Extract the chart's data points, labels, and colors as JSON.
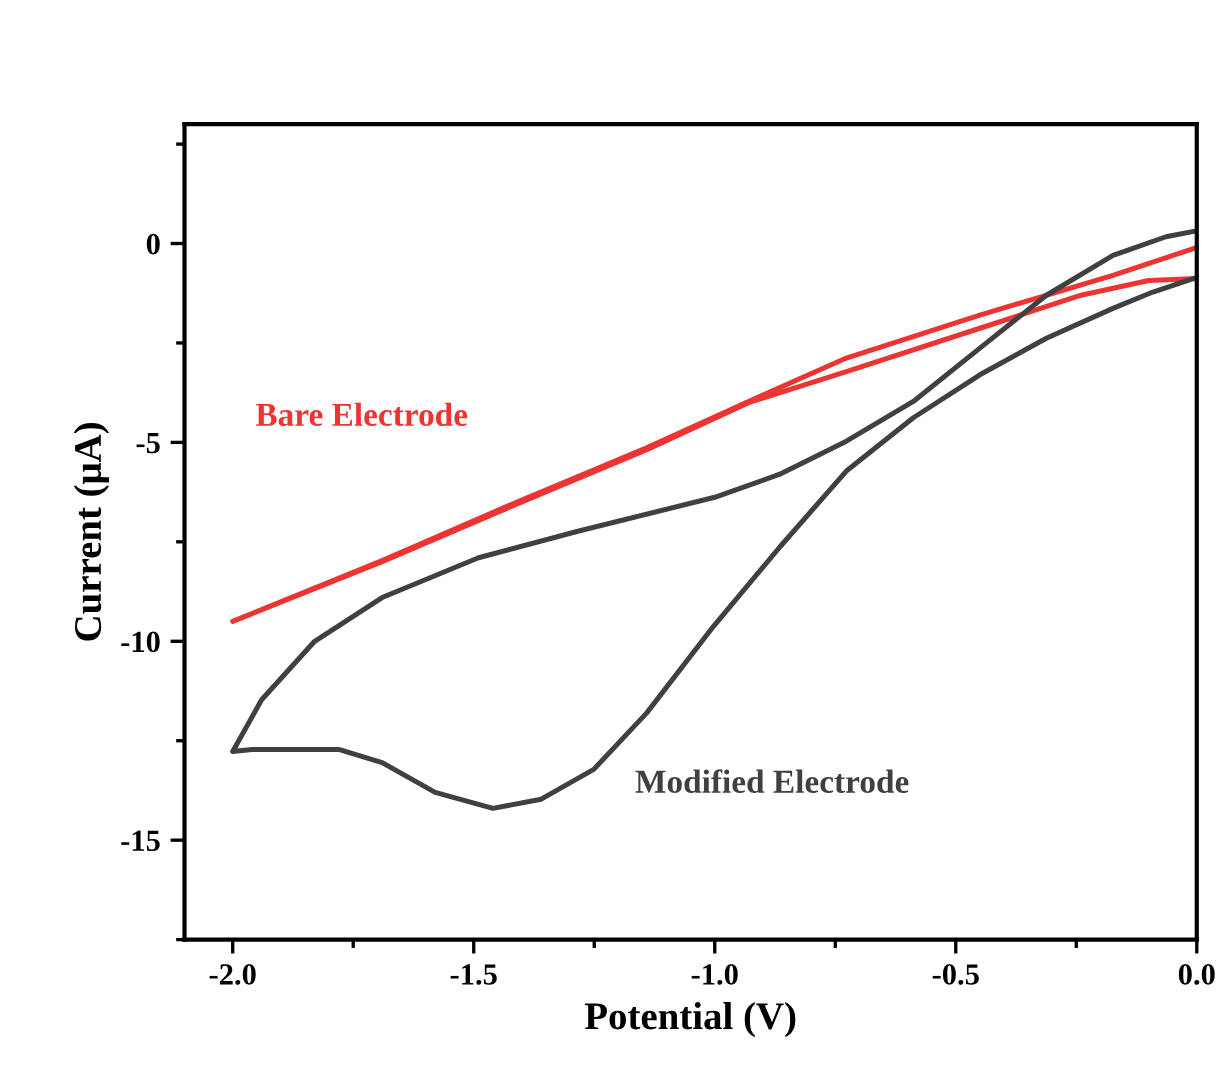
{
  "chart_data": {
    "type": "line",
    "xlabel": "Potential (V)",
    "ylabel": "Current (μA)",
    "xlim": [
      -2.1,
      0.0
    ],
    "ylim": [
      -17.5,
      3
    ],
    "xticks": [
      {
        "value": -2,
        "label": "-2.0"
      },
      {
        "value": -1.75,
        "label": null
      },
      -1.5,
      {
        "value": -1.25,
        "label": null
      },
      {
        "value": -1,
        "label": "-1.0"
      },
      {
        "value": -0.75,
        "label": null
      },
      -0.5,
      {
        "value": -0.25,
        "label": null
      },
      {
        "value": 0,
        "label": "0.0"
      }
    ],
    "yticks": [
      {
        "value": 2.5,
        "label": null
      },
      0,
      {
        "value": -2.5,
        "label": null
      },
      -5,
      {
        "value": -7.5,
        "label": null
      },
      -10,
      {
        "value": -12.5,
        "label": null
      },
      -15,
      {
        "value": -17.5,
        "label": null
      }
    ],
    "grid": false,
    "legend": false,
    "series": [
      {
        "name": "Bare Electrode",
        "color": "#ee3333",
        "x": [
          0.0,
          -0.174,
          -0.45,
          -0.727,
          -0.93,
          -1.14,
          -1.42,
          -1.69,
          -2.0,
          -1.69,
          -1.42,
          -1.14,
          -0.93,
          -0.727,
          -0.45,
          -0.24,
          -0.1,
          0.0
        ],
        "values": [
          -0.1,
          -0.8,
          -1.8,
          -2.88,
          -3.97,
          -5.13,
          -6.55,
          -7.97,
          -9.5,
          -8.0,
          -6.6,
          -5.18,
          -4.0,
          -3.22,
          -2.13,
          -1.3,
          -0.93,
          -0.88
        ]
      },
      {
        "name": "Modified Electrode",
        "color": "#404040",
        "x": [
          0.0,
          -0.064,
          -0.174,
          -0.312,
          -0.45,
          -0.588,
          -0.727,
          -0.865,
          -1.0,
          -1.28,
          -1.49,
          -1.69,
          -1.83,
          -1.94,
          -2.0,
          -1.96,
          -1.78,
          -1.69,
          -1.58,
          -1.46,
          -1.36,
          -1.251,
          -1.141,
          -1.003,
          -0.865,
          -0.727,
          -0.588,
          -0.45,
          -0.312,
          -0.174,
          -0.091,
          0.0
        ],
        "values": [
          0.32,
          0.17,
          -0.3,
          -1.3,
          -2.63,
          -3.97,
          -4.97,
          -5.8,
          -6.38,
          -7.22,
          -7.9,
          -8.9,
          -10.0,
          -11.47,
          -12.77,
          -12.72,
          -12.72,
          -13.05,
          -13.8,
          -14.2,
          -13.97,
          -13.22,
          -11.8,
          -9.63,
          -7.63,
          -5.72,
          -4.38,
          -3.3,
          -2.38,
          -1.63,
          -1.22,
          -0.85
        ]
      }
    ]
  }
}
